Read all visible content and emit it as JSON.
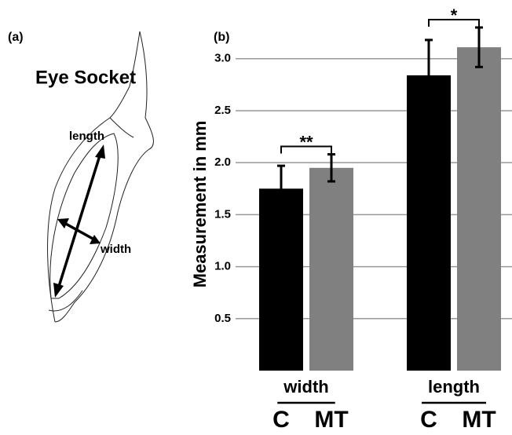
{
  "panel_a": {
    "label": "(a)",
    "title": "Eye Socket",
    "length_label": "length",
    "width_label": "width"
  },
  "chart_data": {
    "type": "bar",
    "panel_label": "(b)",
    "y_label": "Measurement in mm",
    "categories": [
      "width",
      "length"
    ],
    "series": [
      {
        "name": "C",
        "color": "#000000",
        "values": [
          1.75,
          2.84
        ],
        "errors": [
          0.22,
          0.34
        ]
      },
      {
        "name": "MT",
        "color": "#808080",
        "values": [
          1.95,
          3.11
        ],
        "errors": [
          0.13,
          0.19
        ]
      }
    ],
    "significance": [
      "**",
      "*"
    ],
    "ylim": [
      0,
      3.3
    ],
    "yticks": [
      0.5,
      {
        "value": 1,
        "label": "1.0"
      },
      1.5,
      {
        "value": 2,
        "label": "2.0"
      },
      2.5,
      {
        "value": 3,
        "label": "3.0"
      }
    ],
    "grid": true
  }
}
